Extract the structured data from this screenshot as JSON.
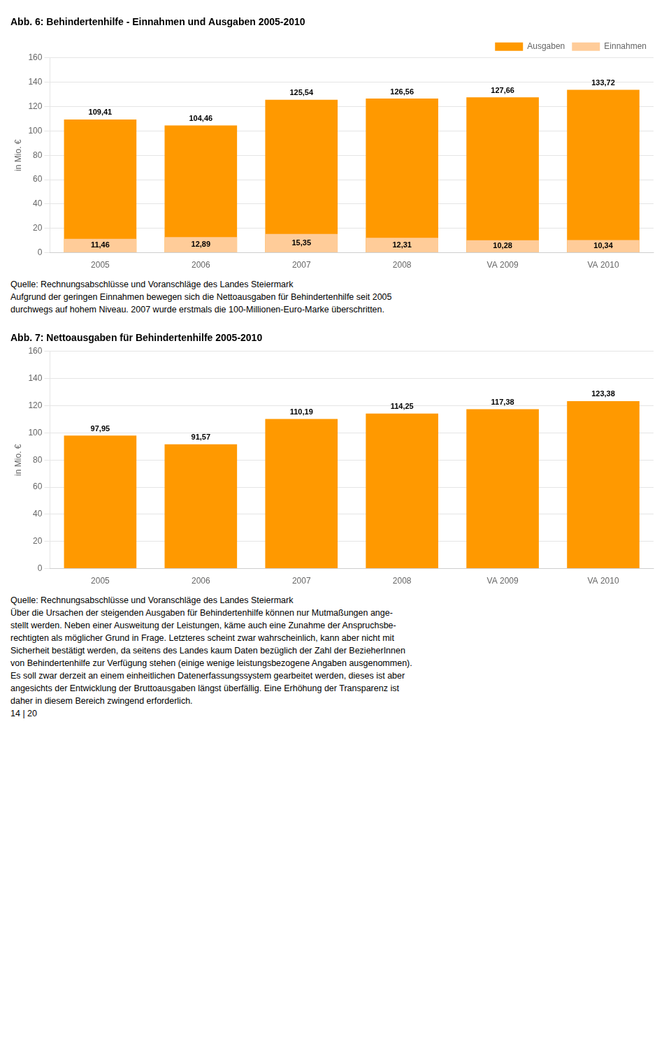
{
  "chart_data": [
    {
      "type": "bar",
      "title": "Abb. 6: Behindertenhilfe - Einnahmen und Ausgaben 2005-2010",
      "ylabel": "in Mio. €",
      "categories": [
        "2005",
        "2006",
        "2007",
        "2008",
        "VA 2009",
        "VA 2010"
      ],
      "series": [
        {
          "name": "Ausgaben",
          "color": "#FF9900",
          "values": [
            109.41,
            104.46,
            125.54,
            126.56,
            127.66,
            133.72
          ],
          "value_labels": [
            "109,41",
            "104,46",
            "125,54",
            "126,56",
            "127,66",
            "133,72"
          ]
        },
        {
          "name": "Einnahmen",
          "color": "#FFCC99",
          "values": [
            11.46,
            12.89,
            15.35,
            12.31,
            10.28,
            10.34
          ],
          "value_labels": [
            "11,46",
            "12,89",
            "15,35",
            "12,31",
            "10,28",
            "10,34"
          ]
        }
      ],
      "ylim": [
        0,
        160
      ],
      "yticks": [
        0,
        20,
        40,
        60,
        80,
        100,
        120,
        140,
        160
      ],
      "grid": true,
      "legend": "upper right",
      "stacked": false,
      "data_labels": true,
      "annotations": [
        "Quelle: Rechnungsabschlüsse und Voranschläge des Landes Steiermark",
        "Aufgrund der geringen Einnahmen bewegen sich die Nettoausgaben für Behindertenhilfe seit 2005",
        "durchwegs auf hohem Niveau. 2007 wurde erstmals die 100-Millionen-Euro-Marke überschritten."
      ]
    },
    {
      "type": "bar",
      "title": "Abb. 7: Nettoausgaben für Behindertenhilfe 2005-2010",
      "ylabel": "in Mio. €",
      "categories": [
        "2005",
        "2006",
        "2007",
        "2008",
        "VA 2009",
        "VA 2010"
      ],
      "values": [
        97.95,
        91.57,
        110.19,
        114.25,
        117.38,
        123.38
      ],
      "value_labels": [
        "97,95",
        "91,57",
        "110,19",
        "114,25",
        "117,38",
        "123,38"
      ],
      "color": "#FF9900",
      "ylim": [
        0,
        160
      ],
      "yticks": [
        0,
        20,
        40,
        60,
        80,
        100,
        120,
        140,
        160
      ],
      "grid": true,
      "data_labels": true,
      "annotations": [
        "Quelle: Rechnungsabschlüsse und Voranschläge des Landes Steiermark",
        "Über die Ursachen der steigenden Ausgaben für Behindertenhilfe können nur Mutmaßungen ange-",
        "stellt werden. Neben einer Ausweitung der Leistungen, käme auch eine Zunahme der Anspruchsbe-",
        "rechtigten als möglicher Grund in Frage. Letzteres scheint zwar wahrscheinlich, kann aber nicht mit",
        "Sicherheit bestätigt werden, da seitens des Landes kaum Daten bezüglich der Zahl der BezieherInnen",
        "von Behindertenhilfe zur Verfügung stehen (einige wenige leistungsbezogene Angaben ausgenommen).",
        "Es soll zwar derzeit an einem einheitlichen Datenerfassungssystem gearbeitet werden, dieses ist aber",
        "angesichts der Entwicklung der Bruttoausgaben längst überfällig. Eine Erhöhung der Transparenz ist",
        "daher in diesem Bereich zwingend erforderlich.",
        "14 | 20"
      ]
    }
  ]
}
